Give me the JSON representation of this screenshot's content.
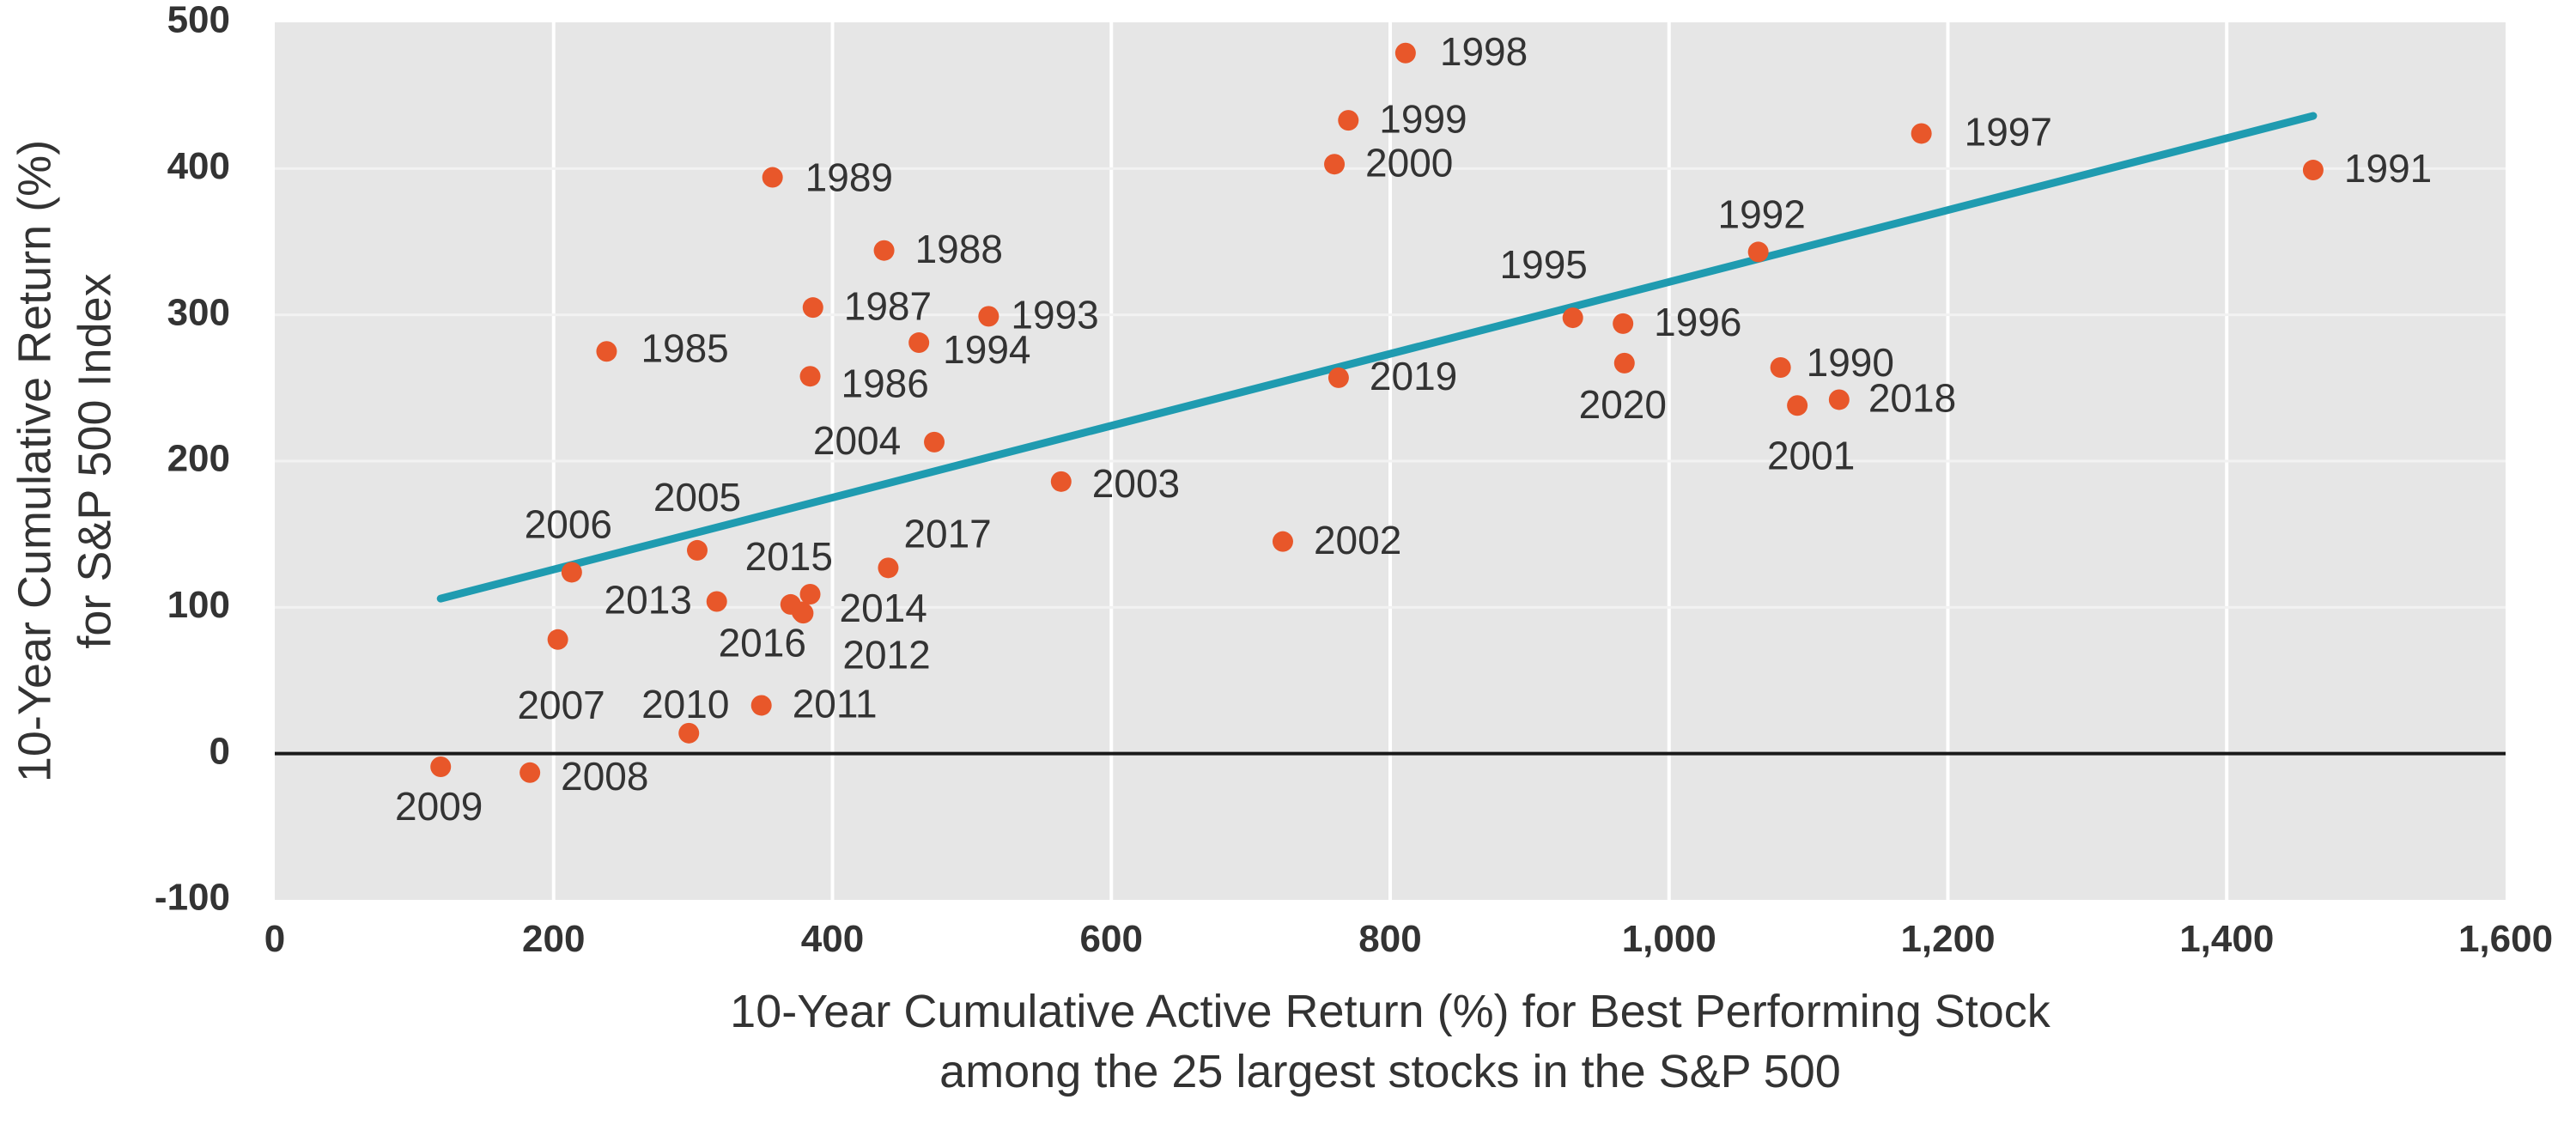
{
  "chart_data": {
    "type": "scatter",
    "xlabel_lines": [
      "10-Year Cumulative Active Return (%) for Best Performing Stock",
      "among the 25 largest stocks in the S&P 500"
    ],
    "ylabel_lines": [
      "10-Year Cumulative Return (%)",
      "for S&P 500 Index"
    ],
    "xlim": [
      0,
      1600
    ],
    "ylim": [
      -100,
      500
    ],
    "x_ticks": [
      0,
      200,
      400,
      600,
      800,
      1000,
      1200,
      1400,
      1600
    ],
    "x_tick_labels": [
      "0",
      "200",
      "400",
      "600",
      "800",
      "1,000",
      "1,200",
      "1,400",
      "1,600"
    ],
    "y_ticks": [
      -100,
      0,
      100,
      200,
      300,
      400,
      500
    ],
    "y_tick_labels": [
      "-100",
      "0",
      "100",
      "200",
      "300",
      "400",
      "500"
    ],
    "grid": "vertical lines white, horizontal lines light",
    "point_color": "#E8572A",
    "trend_color": "#1F9BB0",
    "background_color": "#E6E6E6",
    "points": [
      {
        "label": "1985",
        "x": 238,
        "y": 275
      },
      {
        "label": "1986",
        "x": 384,
        "y": 258
      },
      {
        "label": "1987",
        "x": 386,
        "y": 305
      },
      {
        "label": "1988",
        "x": 437,
        "y": 344
      },
      {
        "label": "1989",
        "x": 357,
        "y": 394
      },
      {
        "label": "1990",
        "x": 1080,
        "y": 264
      },
      {
        "label": "1991",
        "x": 1462,
        "y": 399
      },
      {
        "label": "1992",
        "x": 1064,
        "y": 343
      },
      {
        "label": "1993",
        "x": 512,
        "y": 299
      },
      {
        "label": "1994",
        "x": 462,
        "y": 281
      },
      {
        "label": "1995",
        "x": 931,
        "y": 298
      },
      {
        "label": "1996",
        "x": 967,
        "y": 294
      },
      {
        "label": "1997",
        "x": 1181,
        "y": 424
      },
      {
        "label": "1998",
        "x": 811,
        "y": 479
      },
      {
        "label": "1999",
        "x": 770,
        "y": 433
      },
      {
        "label": "2000",
        "x": 760,
        "y": 403
      },
      {
        "label": "2001",
        "x": 1092,
        "y": 238
      },
      {
        "label": "2002",
        "x": 723,
        "y": 145
      },
      {
        "label": "2003",
        "x": 564,
        "y": 186
      },
      {
        "label": "2004",
        "x": 473,
        "y": 213
      },
      {
        "label": "2005",
        "x": 303,
        "y": 139
      },
      {
        "label": "2006",
        "x": 213,
        "y": 124
      },
      {
        "label": "2007",
        "x": 203,
        "y": 78
      },
      {
        "label": "2008",
        "x": 183,
        "y": -13
      },
      {
        "label": "2009",
        "x": 119,
        "y": -9
      },
      {
        "label": "2010",
        "x": 297,
        "y": 14
      },
      {
        "label": "2011",
        "x": 349,
        "y": 33
      },
      {
        "label": "2012",
        "x": 379,
        "y": 96
      },
      {
        "label": "2013",
        "x": 317,
        "y": 104
      },
      {
        "label": "2014",
        "x": 384,
        "y": 109
      },
      {
        "label": "2015",
        "x": 370,
        "y": 102
      },
      {
        "label": "2016",
        "x": 378,
        "y": 97
      },
      {
        "label": "2017",
        "x": 440,
        "y": 127
      },
      {
        "label": "2018",
        "x": 1122,
        "y": 242
      },
      {
        "label": "2019",
        "x": 763,
        "y": 257
      },
      {
        "label": "2020",
        "x": 968,
        "y": 267
      }
    ],
    "trendline": {
      "x": [
        119,
        1462
      ],
      "y": [
        106,
        436
      ]
    }
  }
}
